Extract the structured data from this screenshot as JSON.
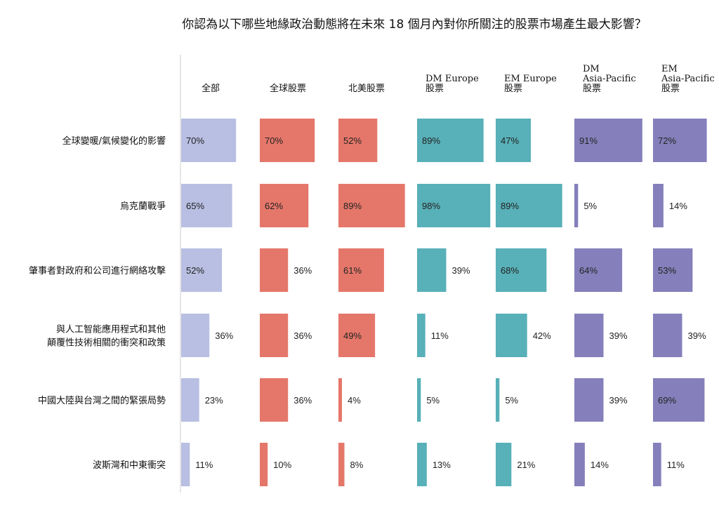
{
  "chart_data": {
    "type": "bar",
    "title": "你認為以下哪些地緣政治動態將在未來 18 個月內對你所關注的股票市場產生最大影響？",
    "xlim": [
      0,
      100
    ],
    "categories": [
      [
        "全球變暖/氣候變化的影響"
      ],
      [
        "烏克蘭戰爭"
      ],
      [
        "肇事者對政府和公司進行網絡攻擊"
      ],
      [
        "與人工智能應用程式和其他",
        "顛覆性技術相關的衝突和政策"
      ],
      [
        "中國大陸與台灣之間的緊張局勢"
      ],
      [
        "波斯灣和中東衝突"
      ]
    ],
    "series": [
      {
        "name": [
          "全部"
        ],
        "color": "#b8bfe2",
        "values": [
          70,
          65,
          52,
          36,
          23,
          11
        ]
      },
      {
        "name": [
          "全球股票"
        ],
        "color": "#e5776a",
        "values": [
          70,
          62,
          36,
          36,
          36,
          10
        ]
      },
      {
        "name": [
          "北美股票"
        ],
        "color": "#e5776a",
        "values": [
          52,
          89,
          61,
          49,
          4,
          8
        ]
      },
      {
        "name": [
          "DM Europe",
          "股票"
        ],
        "color": "#58b0b8",
        "values": [
          89,
          98,
          39,
          11,
          5,
          13
        ]
      },
      {
        "name": [
          "EM Europe",
          "股票"
        ],
        "color": "#58b0b8",
        "values": [
          47,
          89,
          68,
          42,
          5,
          21
        ]
      },
      {
        "name": [
          "DM",
          "Asia-Pacific",
          "股票"
        ],
        "color": "#8580bb",
        "values": [
          91,
          5,
          64,
          39,
          39,
          14
        ]
      },
      {
        "name": [
          "EM",
          "Asia-Pacific",
          "股票"
        ],
        "color": "#8580bb",
        "values": [
          72,
          14,
          53,
          39,
          69,
          11
        ]
      }
    ],
    "value_suffix": "%",
    "grid": false,
    "legend": "column headers"
  }
}
